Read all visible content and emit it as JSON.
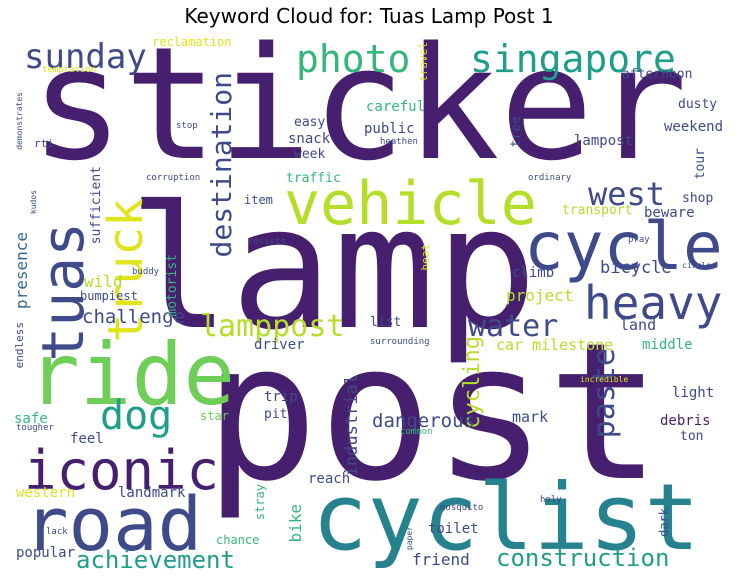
{
  "title": "Keyword Cloud for: Tuas Lamp Post 1",
  "palette": {
    "dark_purple": "#46206f",
    "purple": "#482878",
    "indigo": "#3e4a89",
    "blue": "#31688e",
    "teal": "#26828e",
    "green_teal": "#1f9e89",
    "green": "#35b779",
    "light_green": "#6ece58",
    "lime": "#b5de2b",
    "yellow": "#e0e41a"
  },
  "words": {
    "sticker": "sticker",
    "lamp": "lamp",
    "post": "post",
    "cyclist": "cyclist",
    "ride": "ride",
    "road": "road",
    "iconic": "iconic",
    "vehicle": "vehicle",
    "cycle": "cycle",
    "tuas": "tuas",
    "truck": "truck",
    "heavy": "heavy",
    "singapore": "singapore",
    "photo": "photo",
    "sunday": "sunday",
    "dog": "dog",
    "destination": "destination",
    "west": "west",
    "lamppost": "lamppost",
    "water": "water",
    "paste": "paste",
    "construction": "construction",
    "achievement": "achievement",
    "cycling": "cycling",
    "industrial": "industrial",
    "dangerous": "dangerous",
    "challenge": "challenge",
    "bicycle": "bicycle",
    "project": "project",
    "wild": "wild",
    "presence": "presence",
    "land": "land",
    "car": "car",
    "milestone": "milestone",
    "middle": "middle",
    "light": "light",
    "debris": "debris",
    "ton": "ton",
    "mark": "mark",
    "friend": "friend",
    "toilet": "toilet",
    "bike": "bike",
    "popular": "popular",
    "western": "western",
    "landmark": "landmark",
    "reach": "reach",
    "trip": "trip",
    "pit": "pit",
    "safe": "safe",
    "feel": "feel",
    "star": "star",
    "stray": "stray",
    "chance": "chance",
    "driver": "driver",
    "list": "list",
    "climb": "climb",
    "shop": "shop",
    "beware": "beware",
    "transport": "transport",
    "tour": "tour",
    "weekend": "weekend",
    "dusty": "dusty",
    "afternoon": "afternoon",
    "lampost": "lampost",
    "careful": "careful",
    "public": "public",
    "snack": "snack",
    "week": "week",
    "easy": "easy",
    "traffic": "traffic",
    "item": "item",
    "motorist": "motorist",
    "sufficient": "sufficient",
    "bumpiest": "bumpiest",
    "reclamation": "reclamation",
    "temptation": "temptation",
    "rti": "rti",
    "demonstrates": "demonstrates",
    "corruption": "corruption",
    "kudos": "kudos",
    "stop": "stop",
    "heathen": "heathen",
    "ordinary": "ordinary",
    "tree": "tree",
    "travel": "travel",
    "resists": "resists",
    "heat": "heat",
    "buddy": "buddy",
    "pray": "pray",
    "circle": "circle",
    "endless": "endless",
    "surrounding": "surrounding",
    "incredible": "incredible",
    "tougher": "tougher",
    "common": "common",
    "mosquito": "mosquito",
    "holy": "holy",
    "dark": "dark",
    "paper": "paper",
    "lack": "lack"
  }
}
